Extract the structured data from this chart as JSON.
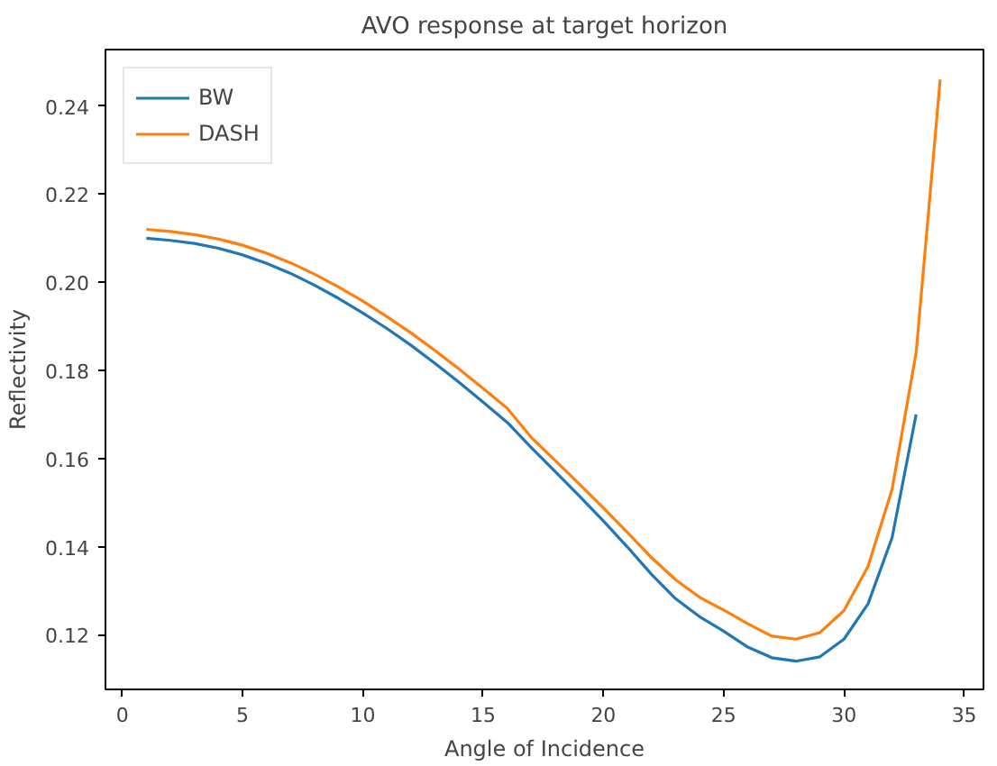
{
  "chart_data": {
    "type": "line",
    "title": "AVO response at target horizon",
    "xlabel": "Angle of Incidence",
    "ylabel": "Reflectivity",
    "xlim": [
      -0.7,
      35.8
    ],
    "ylim": [
      0.1076,
      0.2528
    ],
    "xticks": [
      0,
      5,
      10,
      15,
      20,
      25,
      30,
      35
    ],
    "yticks": [
      {
        "value": 0.12,
        "label": "0.12"
      },
      {
        "value": 0.14,
        "label": "0.14"
      },
      {
        "value": 0.16,
        "label": "0.16"
      },
      {
        "value": 0.18,
        "label": "0.18"
      },
      {
        "value": 0.2,
        "label": "0.20"
      },
      {
        "value": 0.22,
        "label": "0.22"
      },
      {
        "value": 0.24,
        "label": "0.24"
      }
    ],
    "legend": "top left",
    "grid": false,
    "series": [
      {
        "name": "BW",
        "color": "#1f77b4",
        "x": [
          1,
          2,
          3,
          4,
          5,
          6,
          7,
          8,
          9,
          10,
          11,
          12,
          13,
          14,
          15,
          16,
          17,
          18,
          19,
          20,
          21,
          22,
          23,
          24,
          25,
          26,
          27,
          28,
          29,
          30,
          31,
          32,
          33
        ],
        "values": [
          0.21,
          0.2095,
          0.2088,
          0.2077,
          0.2062,
          0.2043,
          0.202,
          0.1993,
          0.1963,
          0.193,
          0.1895,
          0.1857,
          0.1816,
          0.1773,
          0.1728,
          0.1682,
          0.1625,
          0.157,
          0.1515,
          0.1458,
          0.1399,
          0.1337,
          0.1282,
          0.1241,
          0.1208,
          0.1172,
          0.1148,
          0.114,
          0.115,
          0.119,
          0.127,
          0.142,
          0.17
        ]
      },
      {
        "name": "DASH",
        "color": "#ff7f0e",
        "x": [
          1,
          2,
          3,
          4,
          5,
          6,
          7,
          8,
          9,
          10,
          11,
          12,
          13,
          14,
          15,
          16,
          17,
          18,
          19,
          20,
          21,
          22,
          23,
          24,
          25,
          26,
          27,
          28,
          29,
          30,
          31,
          32,
          33,
          34
        ],
        "values": [
          0.212,
          0.2115,
          0.2108,
          0.2098,
          0.2084,
          0.2066,
          0.2044,
          0.2018,
          0.1989,
          0.1957,
          0.1922,
          0.1885,
          0.1845,
          0.1803,
          0.1759,
          0.1714,
          0.1648,
          0.1595,
          0.1542,
          0.1488,
          0.1432,
          0.1375,
          0.1325,
          0.1285,
          0.1256,
          0.1225,
          0.1197,
          0.119,
          0.1205,
          0.1255,
          0.1355,
          0.153,
          0.184,
          0.246
        ]
      }
    ]
  }
}
